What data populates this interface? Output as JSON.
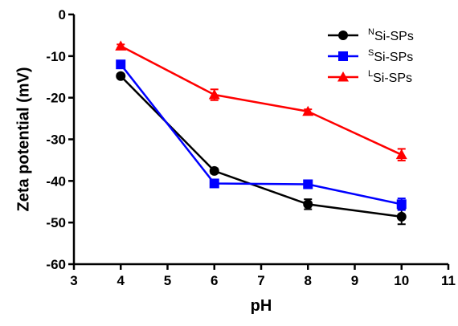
{
  "chart_data": {
    "type": "line",
    "xlabel": "pH",
    "ylabel": "Zeta potential (mV)",
    "xlim": [
      3,
      11
    ],
    "ylim": [
      -60,
      0
    ],
    "x_ticks": [
      "3",
      "4",
      "5",
      "6",
      "7",
      "8",
      "9",
      "10",
      "11"
    ],
    "y_ticks": [
      "0",
      "-10",
      "-20",
      "-30",
      "-40",
      "-50",
      "-60"
    ],
    "x": [
      4,
      6,
      8,
      10
    ],
    "legend_position": "top-right",
    "grid": false,
    "series": [
      {
        "prefix": "N",
        "name": "Si-SPs",
        "color": "#000000",
        "marker": "circle",
        "values": [
          -14.8,
          -37.6,
          -45.6,
          -48.6
        ],
        "errors": [
          0.5,
          0.6,
          1.2,
          1.8
        ]
      },
      {
        "prefix": "S",
        "name": "Si-SPs",
        "color": "#0000ff",
        "marker": "square",
        "values": [
          -12.0,
          -40.6,
          -40.8,
          -45.6
        ],
        "errors": [
          0.4,
          0.5,
          0.5,
          1.4
        ]
      },
      {
        "prefix": "L",
        "name": "Si-SPs",
        "color": "#ff0000",
        "marker": "triangle",
        "values": [
          -7.6,
          -19.3,
          -23.3,
          -33.7
        ],
        "errors": [
          0.4,
          1.3,
          0.5,
          1.4
        ]
      }
    ]
  }
}
